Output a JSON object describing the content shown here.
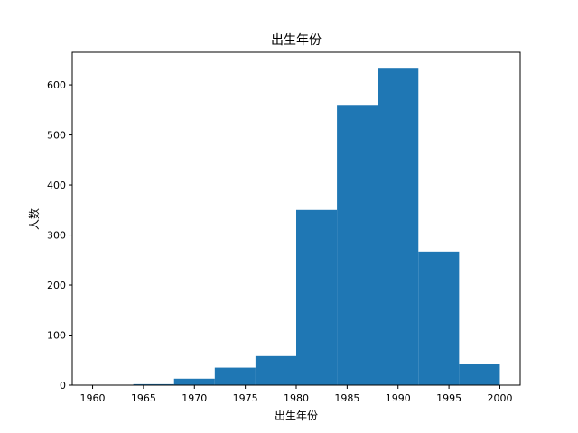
{
  "chart_data": {
    "type": "histogram",
    "title": "出生年份",
    "xlabel": "出生年份",
    "ylabel": "人数",
    "bins": [
      1960,
      1964,
      1968,
      1972,
      1976,
      1980,
      1984,
      1988,
      1992,
      1996,
      2000
    ],
    "counts": [
      0,
      2,
      13,
      35,
      58,
      350,
      560,
      634,
      267,
      42
    ],
    "xlim": [
      1958,
      2002
    ],
    "ylim": [
      0,
      665
    ],
    "xticks": [
      1960,
      1965,
      1970,
      1975,
      1980,
      1985,
      1990,
      1995,
      2000
    ],
    "yticks": [
      0,
      100,
      200,
      300,
      400,
      500,
      600
    ],
    "bar_color": "#1f77b4",
    "grid": false
  }
}
